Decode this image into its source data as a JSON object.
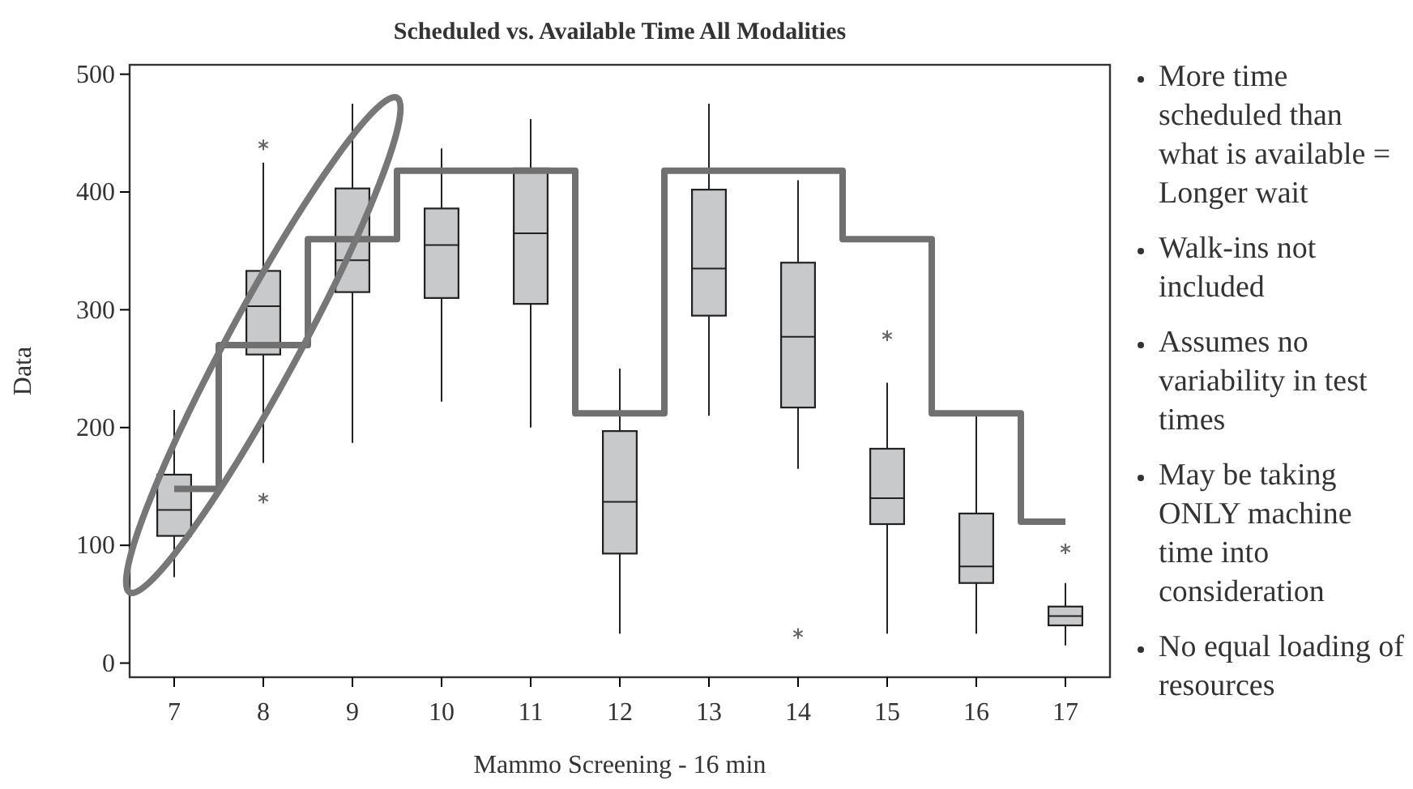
{
  "chart_data": {
    "type": "box",
    "title": "Scheduled vs. Available Time All Modalities",
    "xlabel": "Mammo Screening - 16 min",
    "ylabel": "Data",
    "categories": [
      "7",
      "8",
      "9",
      "10",
      "11",
      "12",
      "13",
      "14",
      "15",
      "16",
      "17"
    ],
    "ylim": [
      -12,
      508
    ],
    "yticks": [
      0,
      100,
      200,
      300,
      400,
      500
    ],
    "series": [
      {
        "color": "#c8c9cb",
        "boxes": [
          {
            "low": 73,
            "q1": 108,
            "median": 130,
            "q3": 160,
            "high": 215
          },
          {
            "low": 170,
            "q1": 262,
            "median": 303,
            "q3": 333,
            "high": 425,
            "outliers": [
              440,
              140
            ]
          },
          {
            "low": 187,
            "q1": 315,
            "median": 342,
            "q3": 403,
            "high": 475
          },
          {
            "low": 222,
            "q1": 310,
            "median": 355,
            "q3": 386,
            "high": 437
          },
          {
            "low": 200,
            "q1": 305,
            "median": 365,
            "q3": 420,
            "high": 462
          },
          {
            "low": 25,
            "q1": 93,
            "median": 137,
            "q3": 197,
            "high": 250
          },
          {
            "low": 210,
            "q1": 295,
            "median": 335,
            "q3": 402,
            "high": 475
          },
          {
            "low": 165,
            "q1": 217,
            "median": 277,
            "q3": 340,
            "high": 410,
            "outliers": [
              25
            ]
          },
          {
            "low": 25,
            "q1": 118,
            "median": 140,
            "q3": 182,
            "high": 238,
            "outliers": [
              278
            ]
          },
          {
            "low": 25,
            "q1": 68,
            "median": 82,
            "q3": 127,
            "high": 210
          },
          {
            "low": 15,
            "q1": 32,
            "median": 40,
            "q3": 48,
            "high": 68,
            "outliers": [
              97
            ]
          }
        ]
      },
      {
        "type": "step",
        "color": "#707070",
        "values": [
          148,
          270,
          360,
          418,
          418,
          212,
          418,
          418,
          360,
          212,
          120
        ]
      }
    ],
    "annotations": [
      "More time scheduled than what is available = Longer wait",
      "Walk-ins not included",
      "Assumes no variability in test times",
      "May be taking ONLY machine time into consideration",
      "No equal loading of resources"
    ]
  }
}
